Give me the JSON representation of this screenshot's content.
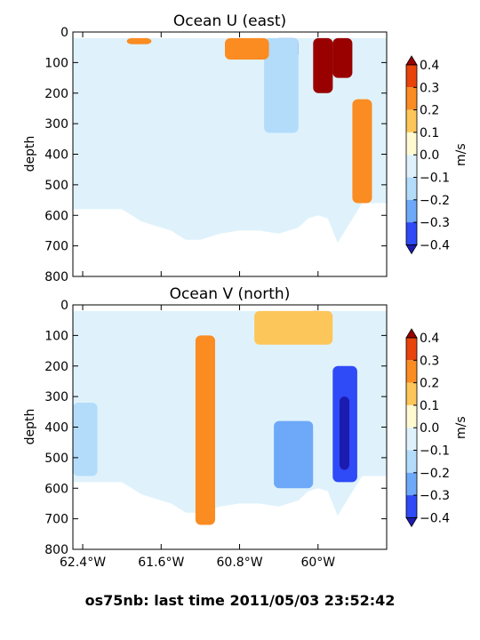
{
  "footer": {
    "prefix": "os75nb: last time",
    "timestamp": "2011/05/03 23:52:42"
  },
  "chart_data": [
    {
      "type": "filled-contour",
      "title": "Ocean U (east)",
      "ylabel": "depth",
      "xlabel": "",
      "ylim": [
        800,
        0
      ],
      "xlim": [
        -62.5,
        -59.3
      ],
      "yticks": [
        "0",
        "100",
        "200",
        "300",
        "400",
        "500",
        "600",
        "700",
        "800"
      ],
      "ytick_values": [
        0,
        100,
        200,
        300,
        400,
        500,
        600,
        700,
        800
      ],
      "xticks": [
        "62.4°W",
        "61.6°W",
        "60.8°W",
        "60°W"
      ],
      "xtick_values": [
        -62.4,
        -61.6,
        -60.8,
        -60.0
      ],
      "xtick_labels_shown": false,
      "colorbar": {
        "label": "m/s",
        "ticks": [
          "0.4",
          "0.3",
          "0.2",
          "0.1",
          "0.0",
          "−0.1",
          "−0.2",
          "−0.3",
          "−0.4"
        ],
        "levels": [
          0.4,
          0.3,
          0.2,
          0.1,
          0.0,
          -0.1,
          -0.2,
          -0.3,
          -0.4
        ],
        "band_colors": [
          "#e8440b",
          "#fb8c22",
          "#fdc65a",
          "#fffad2",
          "#dff2fb",
          "#b3dcfb",
          "#6ea9f9",
          "#2f4af7"
        ],
        "extend_colors": {
          "max": "#990000",
          "min": "#1b1bb0"
        }
      },
      "bottom_depth_profile": {
        "x": [
          -62.5,
          -62.0,
          -61.8,
          -61.6,
          -61.5,
          -61.35,
          -61.2,
          -61.0,
          -60.8,
          -60.6,
          -60.4,
          -60.2,
          -60.1,
          -60.0,
          -59.9,
          -59.8,
          -59.55,
          -59.3
        ],
        "depth": [
          580,
          580,
          620,
          640,
          650,
          680,
          680,
          660,
          650,
          650,
          660,
          640,
          610,
          600,
          610,
          690,
          560,
          560
        ]
      },
      "features": [
        {
          "name": "strong eastward jet",
          "x": [
            -60.05,
            -59.85
          ],
          "depth": [
            20,
            200
          ],
          "value": 0.45
        },
        {
          "name": "eastward core",
          "x": [
            -59.85,
            -59.65
          ],
          "depth": [
            20,
            150
          ],
          "value": 0.45
        },
        {
          "name": "deep eastward band",
          "x": [
            -59.65,
            -59.45
          ],
          "depth": [
            220,
            560
          ],
          "value": 0.25
        },
        {
          "name": "westward core",
          "x": [
            -60.45,
            -60.2
          ],
          "depth": [
            20,
            90
          ],
          "value": -0.45
        },
        {
          "name": "westward flank",
          "x": [
            -60.55,
            -60.2
          ],
          "depth": [
            20,
            330
          ],
          "value": -0.15
        },
        {
          "name": "surface eastward",
          "x": [
            -60.95,
            -60.5
          ],
          "depth": [
            20,
            90
          ],
          "value": 0.25
        },
        {
          "name": "surface eastward (west)",
          "x": [
            -61.95,
            -61.7
          ],
          "depth": [
            20,
            40
          ],
          "value": 0.25
        }
      ]
    },
    {
      "type": "filled-contour",
      "title": "Ocean V (north)",
      "ylabel": "depth",
      "xlabel": "",
      "ylim": [
        800,
        0
      ],
      "xlim": [
        -62.5,
        -59.3
      ],
      "yticks": [
        "0",
        "100",
        "200",
        "300",
        "400",
        "500",
        "600",
        "700",
        "800"
      ],
      "ytick_values": [
        0,
        100,
        200,
        300,
        400,
        500,
        600,
        700,
        800
      ],
      "xticks": [
        "62.4°W",
        "61.6°W",
        "60.8°W",
        "60°W"
      ],
      "xtick_values": [
        -62.4,
        -61.6,
        -60.8,
        -60.0
      ],
      "xtick_labels_shown": true,
      "colorbar": {
        "label": "m/s",
        "ticks": [
          "0.4",
          "0.3",
          "0.2",
          "0.1",
          "0.0",
          "−0.1",
          "−0.2",
          "−0.3",
          "−0.4"
        ],
        "levels": [
          0.4,
          0.3,
          0.2,
          0.1,
          0.0,
          -0.1,
          -0.2,
          -0.3,
          -0.4
        ],
        "band_colors": [
          "#e8440b",
          "#fb8c22",
          "#fdc65a",
          "#fffad2",
          "#dff2fb",
          "#b3dcfb",
          "#6ea9f9",
          "#2f4af7"
        ],
        "extend_colors": {
          "max": "#990000",
          "min": "#1b1bb0"
        }
      },
      "bottom_depth_profile": {
        "x": [
          -62.5,
          -62.0,
          -61.8,
          -61.6,
          -61.5,
          -61.35,
          -61.2,
          -61.0,
          -60.8,
          -60.6,
          -60.4,
          -60.2,
          -60.1,
          -60.0,
          -59.9,
          -59.8,
          -59.55,
          -59.3
        ],
        "depth": [
          580,
          580,
          620,
          640,
          650,
          680,
          680,
          660,
          650,
          650,
          660,
          640,
          610,
          600,
          610,
          690,
          560,
          560
        ]
      },
      "features": [
        {
          "name": "northward surface jet",
          "x": [
            -60.1,
            -59.95
          ],
          "depth": [
            20,
            120
          ],
          "value": 0.45
        },
        {
          "name": "northward surface band",
          "x": [
            -60.65,
            -59.85
          ],
          "depth": [
            20,
            130
          ],
          "value": 0.15
        },
        {
          "name": "northward column",
          "x": [
            -61.25,
            -61.05
          ],
          "depth": [
            100,
            720
          ],
          "value": 0.25
        },
        {
          "name": "southward deep band",
          "x": [
            -59.85,
            -59.6
          ],
          "depth": [
            200,
            580
          ],
          "value": -0.35
        },
        {
          "name": "southward core",
          "x": [
            -59.78,
            -59.68
          ],
          "depth": [
            300,
            540
          ],
          "value": -0.45
        },
        {
          "name": "southward mid-depth",
          "x": [
            -60.45,
            -60.05
          ],
          "depth": [
            380,
            600
          ],
          "value": -0.25
        },
        {
          "name": "southward west",
          "x": [
            -62.5,
            -62.25
          ],
          "depth": [
            320,
            560
          ],
          "value": -0.15
        }
      ]
    }
  ]
}
